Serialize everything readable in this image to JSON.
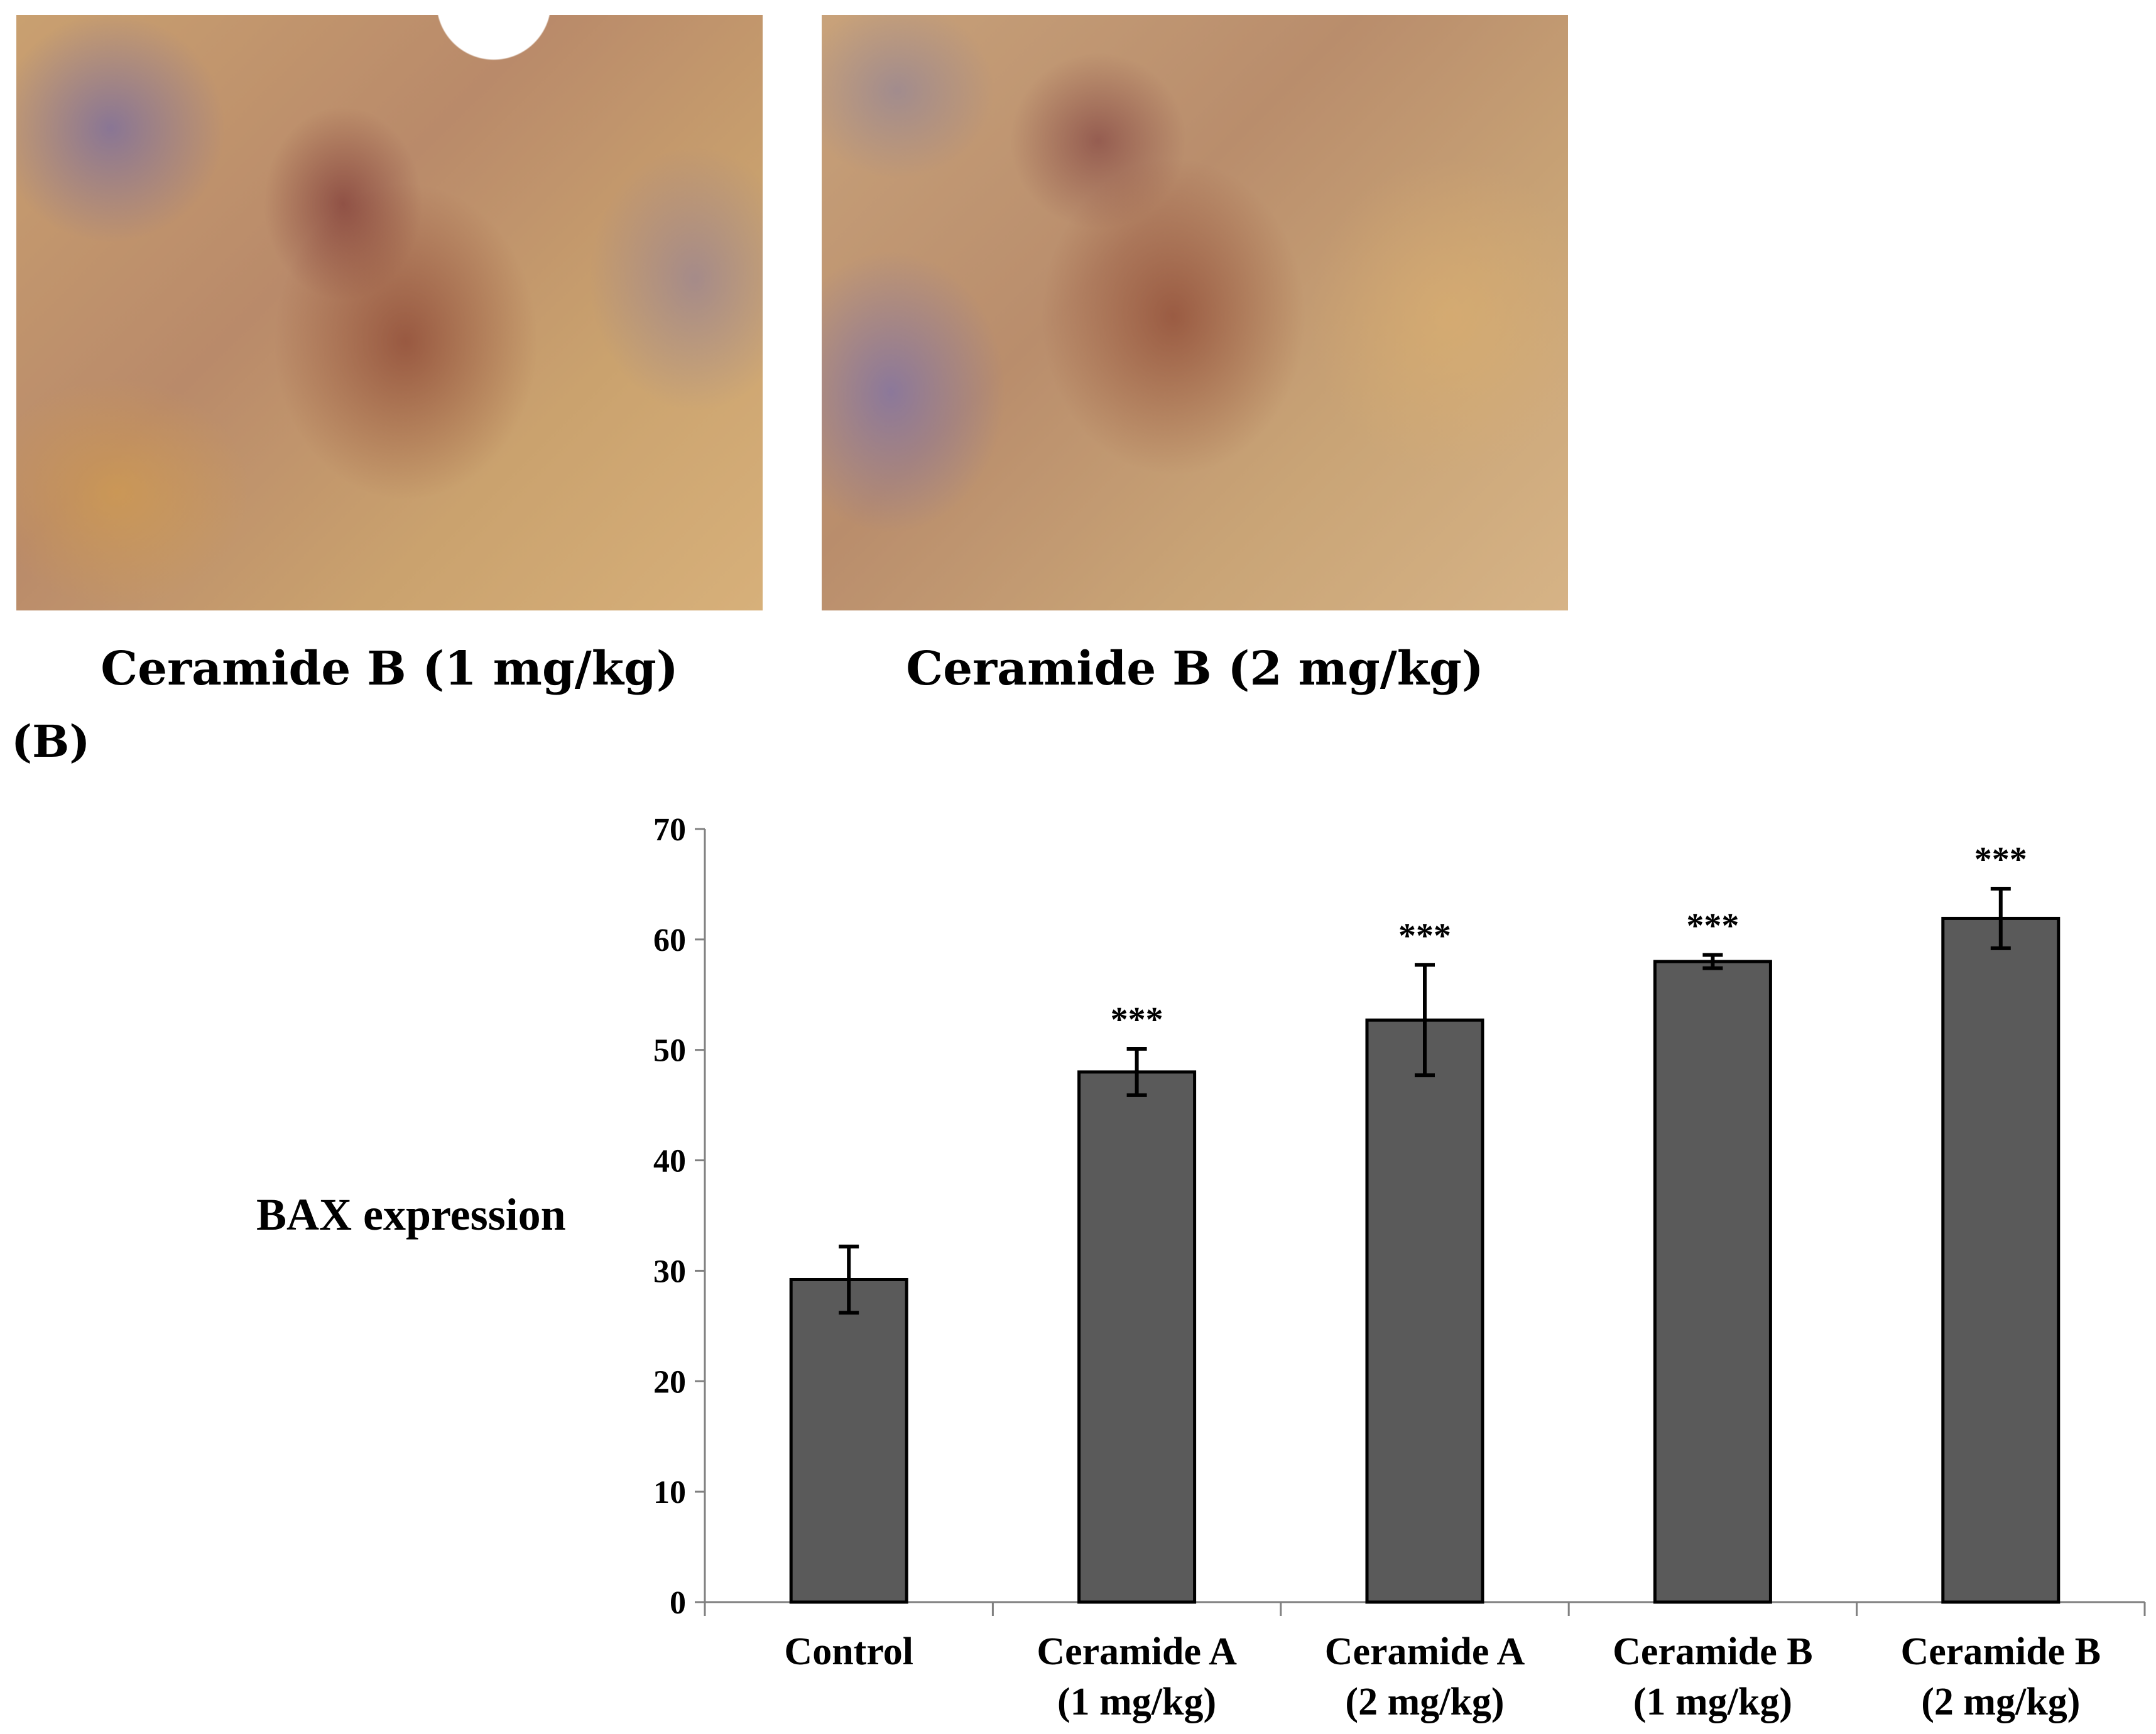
{
  "panels": {
    "images": [
      {
        "caption": "Ceramide B (1 mg/kg)"
      },
      {
        "caption": "Ceramide B (2 mg/kg)"
      }
    ],
    "label": "(B)"
  },
  "chart_data": {
    "type": "bar",
    "title": "",
    "xlabel": "",
    "ylabel": "BAX expression",
    "ylim": [
      0,
      70
    ],
    "yticks": [
      0,
      10,
      20,
      30,
      40,
      50,
      60,
      70
    ],
    "categories": [
      [
        "Control"
      ],
      [
        "Ceramide A",
        "(1 mg/kg)"
      ],
      [
        "Ceramide A",
        "(2 mg/kg)"
      ],
      [
        "Ceramide B",
        "(1 mg/kg)"
      ],
      [
        "Ceramide B",
        "(2 mg/kg)"
      ]
    ],
    "values": [
      29.2,
      48,
      52.7,
      58,
      61.9
    ],
    "errors": [
      3,
      2.1,
      5,
      0.6,
      2.7
    ],
    "annotations": [
      "",
      "***",
      "***",
      "***",
      "***"
    ],
    "colors": {
      "bar": "#5a5a5a",
      "stroke": "#000000",
      "axis": "#808080"
    }
  }
}
